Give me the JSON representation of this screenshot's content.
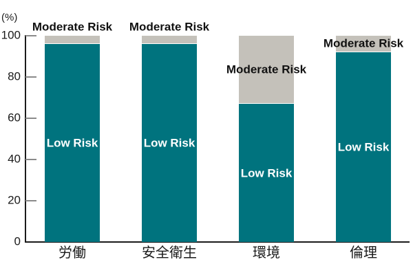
{
  "chart_data": {
    "type": "bar",
    "stacked": true,
    "title": "",
    "xlabel": "",
    "ylabel": "(%)",
    "ylim": [
      0,
      100
    ],
    "y_ticks": [
      0,
      20,
      40,
      60,
      80,
      100
    ],
    "grid": false,
    "legend": "labels drawn on or above bars",
    "categories": [
      "労働",
      "安全衛生",
      "環境",
      "倫理"
    ],
    "series": [
      {
        "name": "Low Risk",
        "color": "#00737e",
        "label_color": "#ffffff",
        "values": [
          96,
          96,
          67,
          92
        ]
      },
      {
        "name": "Moderate Risk",
        "color": "#c4c1ba",
        "label_color": "#111111",
        "values": [
          4,
          4,
          33,
          8
        ]
      }
    ]
  },
  "colors": {
    "axis": "#1a1a1a",
    "tick": "#8a8a8a",
    "background": "#ffffff"
  }
}
